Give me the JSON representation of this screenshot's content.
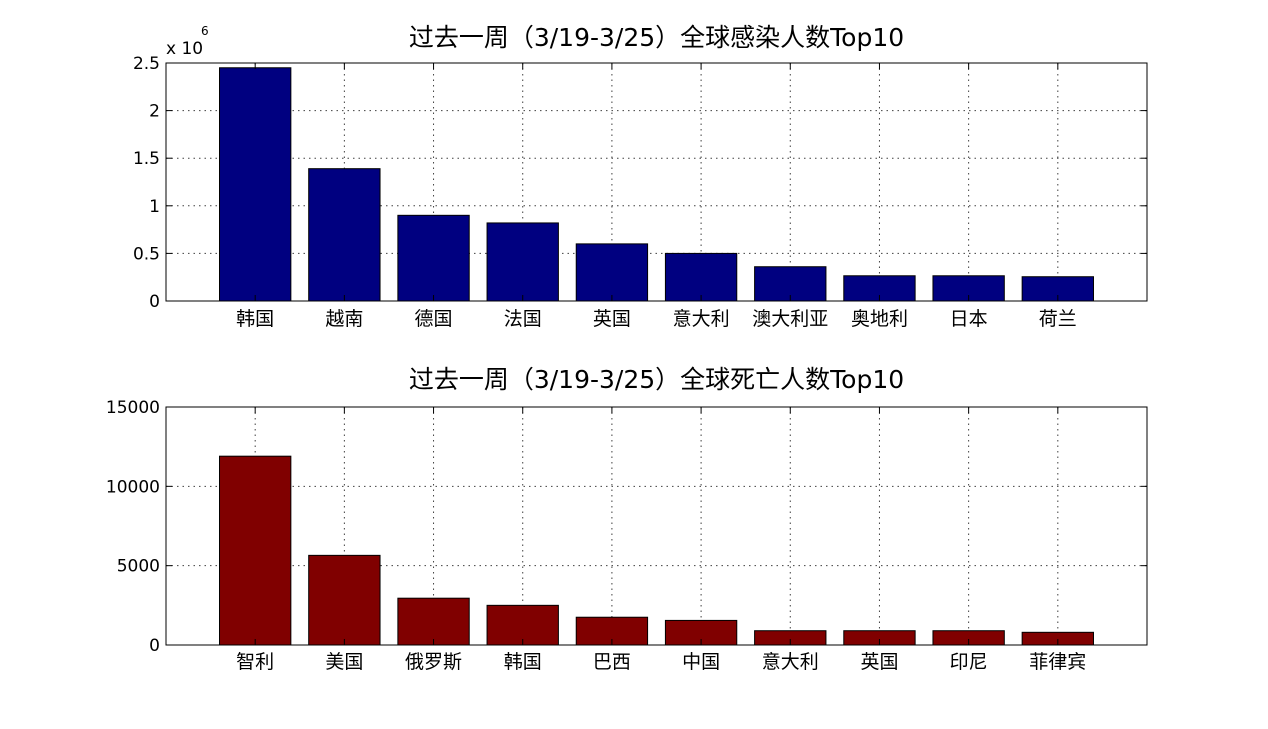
{
  "chart_data": [
    {
      "type": "bar",
      "title": "过去一周（3/19-3/25）全球感染人数Top10",
      "xlabel": "",
      "ylabel": "",
      "y_exponent_label": "x 10",
      "y_exponent_power": "6",
      "categories": [
        "韩国",
        "越南",
        "德国",
        "法国",
        "英国",
        "意大利",
        "澳大利亚",
        "奥地利",
        "日本",
        "荷兰"
      ],
      "values": [
        2450000,
        1390000,
        900000,
        820000,
        600000,
        500000,
        360000,
        265000,
        265000,
        255000
      ],
      "ylim": [
        0,
        2500000
      ],
      "yticks": [
        0,
        500000,
        1000000,
        1500000,
        2000000,
        2500000
      ],
      "ytick_labels": [
        "0",
        "0.5",
        "1",
        "1.5",
        "2",
        "2.5"
      ],
      "bar_color": "#000080",
      "grid": true
    },
    {
      "type": "bar",
      "title": "过去一周（3/19-3/25）全球死亡人数Top10",
      "xlabel": "",
      "ylabel": "",
      "categories": [
        "智利",
        "美国",
        "俄罗斯",
        "韩国",
        "巴西",
        "中国",
        "意大利",
        "英国",
        "印尼",
        "菲律宾"
      ],
      "values": [
        11900,
        5650,
        2950,
        2500,
        1750,
        1550,
        900,
        900,
        900,
        800
      ],
      "ylim": [
        0,
        15000
      ],
      "yticks": [
        0,
        5000,
        10000,
        15000
      ],
      "ytick_labels": [
        "0",
        "5000",
        "10000",
        "15000"
      ],
      "bar_color": "#800000",
      "grid": true
    }
  ]
}
